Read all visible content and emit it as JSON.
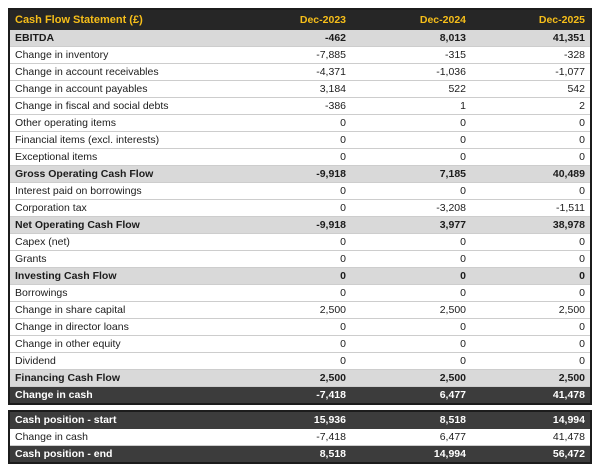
{
  "colors": {
    "accent": "#f6be1a",
    "header_bg": "#262626",
    "dark_row_bg": "#3c3c3c",
    "subtotal_bg": "#d9d9d9",
    "outer_border": "#1c1c1c",
    "row_border": "#cdcdcd",
    "text": "#1c1c1c"
  },
  "table": {
    "title": "Cash Flow Statement (£)",
    "columns": [
      "Dec-2023",
      "Dec-2024",
      "Dec-2025"
    ],
    "rows": [
      {
        "label": "EBITDA",
        "style": "subtotal",
        "values": [
          "-462",
          "8,013",
          "41,351"
        ]
      },
      {
        "label": "Change in inventory",
        "style": "normal",
        "values": [
          "-7,885",
          "-315",
          "-328"
        ]
      },
      {
        "label": "Change in account receivables",
        "style": "normal",
        "values": [
          "-4,371",
          "-1,036",
          "-1,077"
        ]
      },
      {
        "label": "Change in account payables",
        "style": "normal",
        "values": [
          "3,184",
          "522",
          "542"
        ]
      },
      {
        "label": "Change in fiscal and social debts",
        "style": "normal",
        "values": [
          "-386",
          "1",
          "2"
        ]
      },
      {
        "label": "Other operating items",
        "style": "normal",
        "values": [
          "0",
          "0",
          "0"
        ]
      },
      {
        "label": "Financial items (excl. interests)",
        "style": "normal",
        "values": [
          "0",
          "0",
          "0"
        ]
      },
      {
        "label": "Exceptional items",
        "style": "normal",
        "values": [
          "0",
          "0",
          "0"
        ]
      },
      {
        "label": "Gross Operating Cash Flow",
        "style": "subtotal",
        "values": [
          "-9,918",
          "7,185",
          "40,489"
        ]
      },
      {
        "label": "Interest paid on borrowings",
        "style": "normal",
        "values": [
          "0",
          "0",
          "0"
        ]
      },
      {
        "label": "Corporation tax",
        "style": "normal",
        "values": [
          "0",
          "-3,208",
          "-1,511"
        ]
      },
      {
        "label": "Net Operating Cash Flow",
        "style": "subtotal",
        "values": [
          "-9,918",
          "3,977",
          "38,978"
        ]
      },
      {
        "label": "Capex (net)",
        "style": "normal",
        "values": [
          "0",
          "0",
          "0"
        ]
      },
      {
        "label": "Grants",
        "style": "normal",
        "values": [
          "0",
          "0",
          "0"
        ]
      },
      {
        "label": "Investing Cash Flow",
        "style": "subtotal",
        "values": [
          "0",
          "0",
          "0"
        ]
      },
      {
        "label": "Borrowings",
        "style": "normal",
        "values": [
          "0",
          "0",
          "0"
        ]
      },
      {
        "label": "Change in share capital",
        "style": "normal",
        "values": [
          "2,500",
          "2,500",
          "2,500"
        ]
      },
      {
        "label": "Change in director loans",
        "style": "normal",
        "values": [
          "0",
          "0",
          "0"
        ]
      },
      {
        "label": "Change in other equity",
        "style": "normal",
        "values": [
          "0",
          "0",
          "0"
        ]
      },
      {
        "label": "Dividend",
        "style": "normal",
        "values": [
          "0",
          "0",
          "0"
        ]
      },
      {
        "label": "Financing Cash Flow",
        "style": "subtotal",
        "values": [
          "2,500",
          "2,500",
          "2,500"
        ]
      },
      {
        "label": "Change in cash",
        "style": "dark",
        "values": [
          "-7,418",
          "6,477",
          "41,478"
        ]
      }
    ]
  },
  "summary_table": {
    "rows": [
      {
        "label": "Cash position - start",
        "style": "dark",
        "values": [
          "15,936",
          "8,518",
          "14,994"
        ]
      },
      {
        "label": "Change in cash",
        "style": "normal",
        "values": [
          "-7,418",
          "6,477",
          "41,478"
        ]
      },
      {
        "label": "Cash position - end",
        "style": "dark",
        "values": [
          "8,518",
          "14,994",
          "56,472"
        ]
      }
    ]
  }
}
